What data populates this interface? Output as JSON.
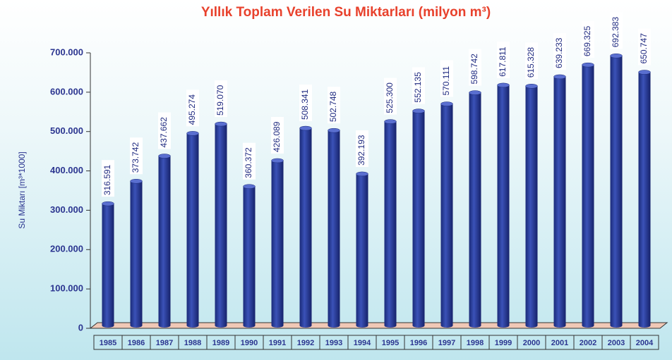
{
  "chart_data": {
    "type": "bar",
    "title": "Yıllık Toplam Verilen Su Miktarları (milyon m³)",
    "y_label": "Su Miktarı [m³*1000]",
    "categories": [
      "1985",
      "1986",
      "1987",
      "1988",
      "1989",
      "1990",
      "1991",
      "1992",
      "1993",
      "1994",
      "1995",
      "1996",
      "1997",
      "1998",
      "1999",
      "2000",
      "2001",
      "2002",
      "2003",
      "2004"
    ],
    "values": [
      316591,
      373742,
      437662,
      495274,
      519070,
      360372,
      426089,
      508341,
      502748,
      392193,
      525300,
      552135,
      570111,
      598742,
      617811,
      615328,
      639233,
      669325,
      692383,
      650747
    ],
    "value_labels": [
      "316.591",
      "373.742",
      "437.662",
      "495.274",
      "519.070",
      "360.372",
      "426.089",
      "508.341",
      "502.748",
      "392.193",
      "525.300",
      "552.135",
      "570.111",
      "598.742",
      "617.811",
      "615.328",
      "639.233",
      "669.325",
      "692.383",
      "650.747"
    ],
    "color": "#2b3f9c",
    "ylim": [
      0,
      700000
    ],
    "yticks": [
      {
        "value": 0,
        "label": "0"
      },
      {
        "value": 100000,
        "label": "100.000"
      },
      {
        "value": 200000,
        "label": "200.000"
      },
      {
        "value": 300000,
        "label": "300.000"
      },
      {
        "value": 400000,
        "label": "400.000"
      },
      {
        "value": 500000,
        "label": "500.000"
      },
      {
        "value": 600000,
        "label": "600.000"
      },
      {
        "value": 700000,
        "label": "700.000"
      }
    ],
    "grid": false
  }
}
